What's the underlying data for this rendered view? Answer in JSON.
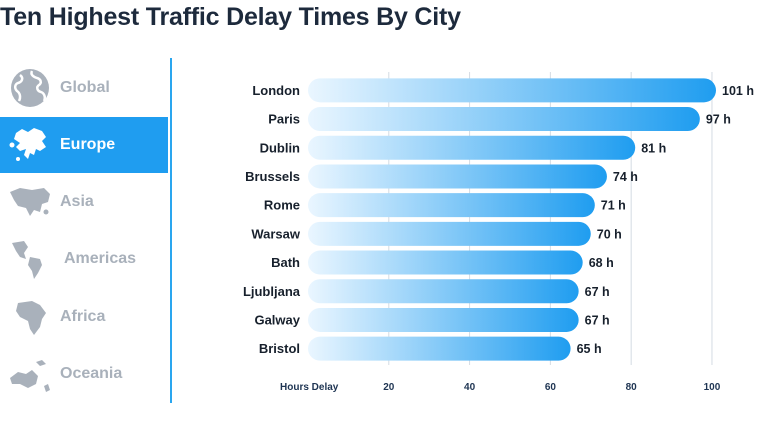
{
  "title": "Ten Highest Traffic Delay Times By City",
  "sidebar": {
    "items": [
      {
        "label": "Global",
        "icon": "globe-icon",
        "active": false
      },
      {
        "label": "Europe",
        "icon": "europe-map-icon",
        "active": true
      },
      {
        "label": "Asia",
        "icon": "asia-map-icon",
        "active": false
      },
      {
        "label": "Americas",
        "icon": "americas-map-icon",
        "active": false
      },
      {
        "label": "Africa",
        "icon": "africa-map-icon",
        "active": false
      },
      {
        "label": "Oceania",
        "icon": "oceania-map-icon",
        "active": false
      }
    ],
    "accent": "#1f9df0",
    "inactive_color": "#a9b1bb"
  },
  "chart_data": {
    "type": "bar",
    "orientation": "horizontal",
    "categories": [
      "London",
      "Paris",
      "Dublin",
      "Brussels",
      "Rome",
      "Warsaw",
      "Bath",
      "Ljubljana",
      "Galway",
      "Bristol"
    ],
    "values": [
      101,
      97,
      81,
      74,
      71,
      70,
      68,
      67,
      67,
      65
    ],
    "value_suffix": " h",
    "xlabel": "Hours Delay",
    "xticks": [
      20,
      40,
      60,
      80,
      100
    ],
    "xlim": [
      0,
      101
    ],
    "grid": true,
    "bar_color_start": "#eaf6ff",
    "bar_color_end": "#1f9df0"
  }
}
